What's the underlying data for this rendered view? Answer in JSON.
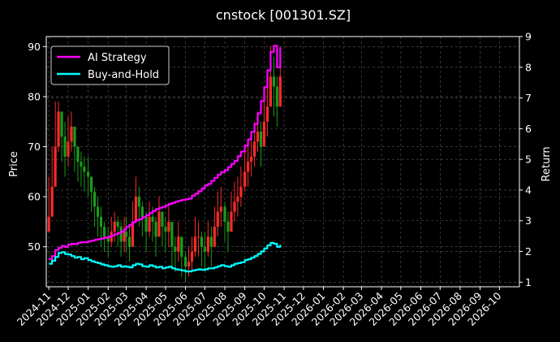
{
  "chart_data": {
    "type": "line",
    "title": "cnstock [001301.SZ]",
    "ylabel_left": "Price",
    "ylabel_right": "Return",
    "ylim_left": [
      42,
      92
    ],
    "ylim_right": [
      0.85,
      9.0
    ],
    "yticks_left": [
      "50",
      "60",
      "70",
      "80",
      "90"
    ],
    "yticks_right": [
      "1",
      "2",
      "3",
      "4",
      "5",
      "6",
      "7",
      "8",
      "9"
    ],
    "xticks": [
      "2024-11",
      "2024-12",
      "2025-01",
      "2025-02",
      "2025-03",
      "2025-04",
      "2025-05",
      "2025-06",
      "2025-07",
      "2025-08",
      "2025-09",
      "2025-10",
      "2025-11",
      "2025-12",
      "2026-01",
      "2026-02",
      "2026-03",
      "2026-04",
      "2026-05",
      "2026-06",
      "2026-07",
      "2026-08",
      "2026-09",
      "2026-10"
    ],
    "grid": true,
    "legend_position": "top-left",
    "legend": [
      "AI Strategy",
      "Buy-and-Hold"
    ],
    "colors": {
      "ai_strategy": "#ff00ff",
      "buy_and_hold": "#00ffff",
      "candle_up": "#ff2a2a",
      "candle_down": "#1a9c1a",
      "grid": "#5a5a5a",
      "axes": "#ffffff"
    },
    "series": [
      {
        "name": "AI Strategy",
        "axis": "right",
        "x": [
          "2024-11-01",
          "2024-11-06",
          "2024-11-11",
          "2024-11-16",
          "2024-11-21",
          "2024-11-26",
          "2024-12-01",
          "2024-12-06",
          "2024-12-11",
          "2024-12-16",
          "2024-12-21",
          "2024-12-26",
          "2025-01-01",
          "2025-01-06",
          "2025-01-11",
          "2025-01-16",
          "2025-01-21",
          "2025-01-26",
          "2025-02-01",
          "2025-02-06",
          "2025-02-11",
          "2025-02-16",
          "2025-02-21",
          "2025-02-26",
          "2025-03-01",
          "2025-03-06",
          "2025-03-11",
          "2025-03-16",
          "2025-03-21",
          "2025-03-26",
          "2025-04-01",
          "2025-04-06",
          "2025-04-11",
          "2025-04-16",
          "2025-04-21",
          "2025-04-26",
          "2025-05-01",
          "2025-05-06",
          "2025-05-11",
          "2025-05-16",
          "2025-05-21",
          "2025-05-26",
          "2025-06-01",
          "2025-06-06",
          "2025-06-11",
          "2025-06-16",
          "2025-06-21",
          "2025-06-26",
          "2025-07-01",
          "2025-07-06",
          "2025-07-11",
          "2025-07-16",
          "2025-07-21",
          "2025-07-26",
          "2025-08-01",
          "2025-08-06",
          "2025-08-11",
          "2025-08-16",
          "2025-08-21",
          "2025-08-26",
          "2025-09-01",
          "2025-09-06",
          "2025-09-11",
          "2025-09-16",
          "2025-09-21",
          "2025-09-26",
          "2025-10-01",
          "2025-10-06",
          "2025-10-11",
          "2025-10-16",
          "2025-10-21",
          "2025-10-26"
        ],
        "values": [
          1.75,
          1.85,
          2.05,
          2.12,
          2.18,
          2.15,
          2.22,
          2.25,
          2.24,
          2.28,
          2.3,
          2.3,
          2.33,
          2.35,
          2.38,
          2.4,
          2.42,
          2.45,
          2.48,
          2.52,
          2.56,
          2.6,
          2.65,
          2.72,
          2.8,
          2.86,
          2.95,
          3.02,
          3.05,
          3.12,
          3.18,
          3.25,
          3.32,
          3.38,
          3.42,
          3.45,
          3.5,
          3.55,
          3.58,
          3.62,
          3.65,
          3.68,
          3.7,
          3.72,
          3.82,
          3.88,
          3.96,
          4.05,
          4.15,
          4.2,
          4.3,
          4.4,
          4.5,
          4.58,
          4.65,
          4.75,
          4.85,
          4.95,
          5.1,
          5.25,
          5.45,
          5.65,
          5.9,
          6.15,
          6.5,
          6.9,
          7.35,
          7.9,
          8.5,
          8.7,
          8.0,
          8.65
        ]
      },
      {
        "name": "Buy-and-Hold",
        "axis": "right",
        "x": [
          "2024-11-01",
          "2024-11-06",
          "2024-11-11",
          "2024-11-16",
          "2024-11-21",
          "2024-11-26",
          "2024-12-01",
          "2024-12-06",
          "2024-12-11",
          "2024-12-16",
          "2024-12-21",
          "2024-12-26",
          "2025-01-01",
          "2025-01-06",
          "2025-01-11",
          "2025-01-16",
          "2025-01-21",
          "2025-01-26",
          "2025-02-01",
          "2025-02-06",
          "2025-02-11",
          "2025-02-16",
          "2025-02-21",
          "2025-02-26",
          "2025-03-01",
          "2025-03-06",
          "2025-03-11",
          "2025-03-16",
          "2025-03-21",
          "2025-03-26",
          "2025-04-01",
          "2025-04-06",
          "2025-04-11",
          "2025-04-16",
          "2025-04-21",
          "2025-04-26",
          "2025-05-01",
          "2025-05-06",
          "2025-05-11",
          "2025-05-16",
          "2025-05-21",
          "2025-05-26",
          "2025-06-01",
          "2025-06-06",
          "2025-06-11",
          "2025-06-16",
          "2025-06-21",
          "2025-06-26",
          "2025-07-01",
          "2025-07-06",
          "2025-07-11",
          "2025-07-16",
          "2025-07-21",
          "2025-07-26",
          "2025-08-01",
          "2025-08-06",
          "2025-08-11",
          "2025-08-16",
          "2025-08-21",
          "2025-08-26",
          "2025-09-01",
          "2025-09-06",
          "2025-09-11",
          "2025-09-16",
          "2025-09-21",
          "2025-09-26",
          "2025-10-01",
          "2025-10-06",
          "2025-10-11",
          "2025-10-16",
          "2025-10-21",
          "2025-10-26"
        ],
        "values": [
          1.6,
          1.7,
          1.82,
          1.95,
          1.98,
          1.92,
          1.9,
          1.85,
          1.8,
          1.82,
          1.75,
          1.78,
          1.72,
          1.68,
          1.65,
          1.62,
          1.58,
          1.55,
          1.52,
          1.5,
          1.52,
          1.55,
          1.5,
          1.52,
          1.5,
          1.48,
          1.55,
          1.6,
          1.58,
          1.52,
          1.5,
          1.55,
          1.52,
          1.48,
          1.5,
          1.45,
          1.48,
          1.5,
          1.45,
          1.42,
          1.4,
          1.38,
          1.35,
          1.35,
          1.38,
          1.4,
          1.42,
          1.4,
          1.42,
          1.45,
          1.45,
          1.48,
          1.52,
          1.55,
          1.52,
          1.5,
          1.55,
          1.6,
          1.62,
          1.65,
          1.72,
          1.75,
          1.8,
          1.85,
          1.92,
          2.0,
          2.1,
          2.2,
          2.28,
          2.25,
          2.15,
          2.22
        ]
      }
    ],
    "candles": {
      "axis": "left",
      "x": [
        "2024-11-01",
        "2024-11-06",
        "2024-11-11",
        "2024-11-16",
        "2024-11-21",
        "2024-11-26",
        "2024-12-01",
        "2024-12-06",
        "2024-12-11",
        "2024-12-16",
        "2024-12-21",
        "2024-12-26",
        "2025-01-01",
        "2025-01-06",
        "2025-01-11",
        "2025-01-16",
        "2025-01-21",
        "2025-01-26",
        "2025-02-01",
        "2025-02-06",
        "2025-02-11",
        "2025-02-16",
        "2025-02-21",
        "2025-02-26",
        "2025-03-01",
        "2025-03-06",
        "2025-03-11",
        "2025-03-16",
        "2025-03-21",
        "2025-03-26",
        "2025-04-01",
        "2025-04-06",
        "2025-04-11",
        "2025-04-16",
        "2025-04-21",
        "2025-04-26",
        "2025-05-01",
        "2025-05-06",
        "2025-05-11",
        "2025-05-16",
        "2025-05-21",
        "2025-05-26",
        "2025-06-01",
        "2025-06-06",
        "2025-06-11",
        "2025-06-16",
        "2025-06-21",
        "2025-06-26",
        "2025-07-01",
        "2025-07-06",
        "2025-07-11",
        "2025-07-16",
        "2025-07-21",
        "2025-07-26",
        "2025-08-01",
        "2025-08-06",
        "2025-08-11",
        "2025-08-16",
        "2025-08-21",
        "2025-08-26",
        "2025-09-01",
        "2025-09-06",
        "2025-09-11",
        "2025-09-16",
        "2025-09-21",
        "2025-09-26",
        "2025-10-01",
        "2025-10-06",
        "2025-10-11",
        "2025-10-16",
        "2025-10-21",
        "2025-10-26"
      ],
      "close": [
        56,
        62,
        70,
        77,
        72,
        68,
        71,
        74,
        70,
        67,
        66,
        65,
        64,
        61,
        58,
        56,
        54,
        52,
        51,
        53,
        55,
        54,
        51,
        53,
        52,
        50,
        55,
        60,
        58,
        56,
        53,
        56,
        55,
        52,
        57,
        54,
        53,
        55,
        50,
        49,
        52,
        48,
        46,
        47,
        49,
        52,
        52,
        50,
        49,
        52,
        50,
        54,
        57,
        58,
        55,
        53,
        57,
        59,
        60,
        62,
        65,
        67,
        68,
        71,
        73,
        70,
        75,
        78,
        84,
        82,
        78,
        84
      ],
      "high": [
        64,
        70,
        79,
        79,
        76,
        75,
        76,
        77,
        73,
        70,
        69,
        68,
        68,
        64,
        62,
        60,
        58,
        55,
        54,
        56,
        57,
        56,
        55,
        56,
        56,
        54,
        59,
        64,
        62,
        59,
        57,
        59,
        58,
        56,
        60,
        57,
        56,
        58,
        54,
        52,
        55,
        51,
        49,
        50,
        52,
        56,
        55,
        53,
        53,
        55,
        54,
        58,
        61,
        62,
        59,
        57,
        61,
        63,
        64,
        66,
        69,
        71,
        72,
        75,
        77,
        75,
        80,
        84,
        90,
        88,
        84,
        89
      ],
      "low": [
        53,
        56,
        62,
        69,
        67,
        64,
        66,
        69,
        65,
        63,
        62,
        61,
        60,
        57,
        54,
        52,
        50,
        49,
        48,
        50,
        51,
        50,
        48,
        49,
        49,
        47,
        51,
        55,
        54,
        52,
        49,
        52,
        51,
        48,
        52,
        50,
        49,
        50,
        46,
        45,
        47,
        44,
        43,
        44,
        45,
        48,
        48,
        46,
        45,
        48,
        46,
        50,
        52,
        54,
        51,
        49,
        53,
        55,
        56,
        58,
        61,
        62,
        64,
        66,
        69,
        66,
        70,
        72,
        78,
        76,
        74,
        78
      ]
    }
  }
}
